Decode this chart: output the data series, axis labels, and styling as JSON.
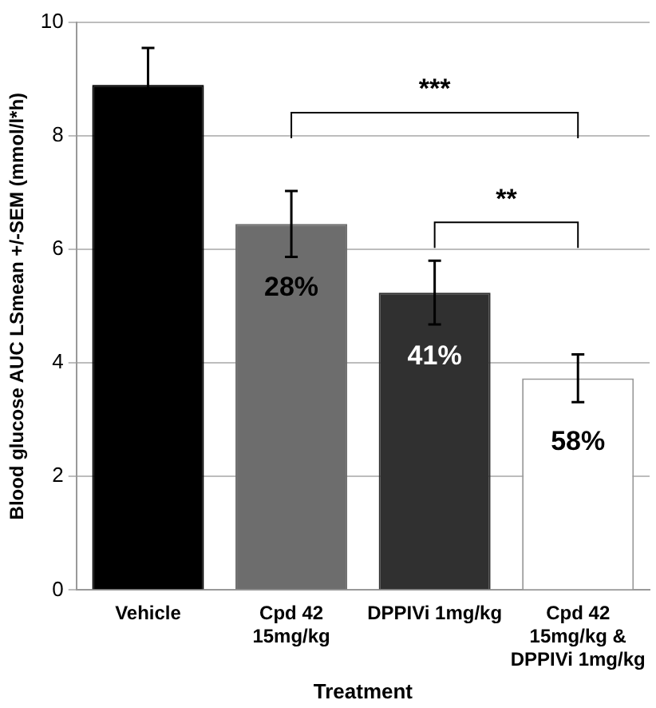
{
  "chart_data": {
    "type": "bar",
    "xlabel": "Treatment",
    "ylabel": "Blood glucose AUC LSmean +/-SEM (mmol/l*h)",
    "categories": [
      "Vehicle",
      "Cpd 42\n15mg/kg",
      "DPPIVi 1mg/kg",
      "Cpd 42\n15mg/kg &\nDPPIVi 1mg/kg"
    ],
    "values": [
      8.9,
      6.45,
      5.24,
      3.73
    ],
    "colors": [
      "#000000",
      "#6d6d6d",
      "#303030",
      "#ffffff"
    ],
    "errors": [
      0.65,
      0.58,
      0.56,
      0.42
    ],
    "ylim": [
      0,
      10
    ],
    "yticks": [
      0,
      2,
      4,
      6,
      8,
      10
    ],
    "grid": "y",
    "legend": false,
    "annotations": [
      "28%",
      "41%",
      "58%",
      "***",
      "**"
    ]
  }
}
